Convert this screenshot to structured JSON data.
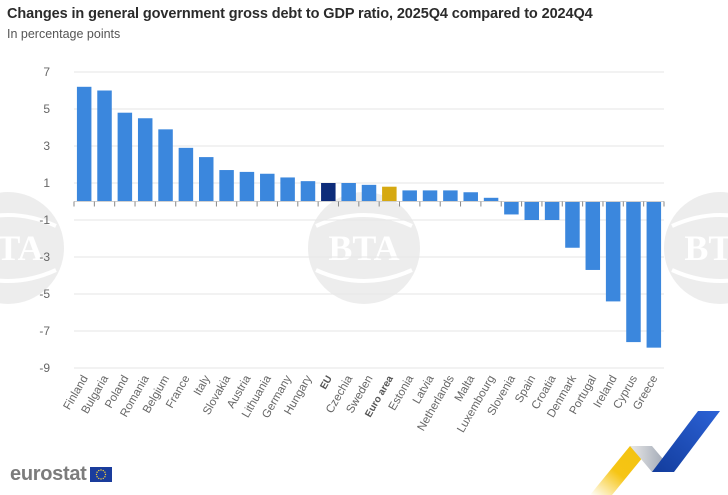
{
  "header": {
    "title": "Changes in general government gross debt to GDP ratio, 2025Q4 compared to 2024Q4",
    "subtitle": "In percentage points"
  },
  "branding": {
    "logo_text": "eurostat",
    "flag_icon": "eu-flag-icon",
    "watermark": "BTA"
  },
  "colors": {
    "country_bar": "#3b87dd",
    "eu_bar": "#0d2c7a",
    "euro_area_bar": "#d6a911",
    "gridline": "#e6e6e6",
    "axis_text": "#666666"
  },
  "chart_data": {
    "type": "bar",
    "title": "Changes in general government gross debt to GDP ratio, 2025Q4 compared to 2024Q4",
    "subtitle": "In percentage points",
    "xlabel": "",
    "ylabel": "",
    "ylim": [
      -9,
      7
    ],
    "yticks": [
      7,
      5,
      3,
      1,
      -1,
      -3,
      -5,
      -7,
      -9
    ],
    "ytick_labels": [
      "7",
      "5",
      "3",
      "1",
      "-1",
      "-3",
      "-5",
      "-7",
      "-9"
    ],
    "grid": true,
    "legend": "none",
    "categories": [
      "Finland",
      "Bulgaria",
      "Poland",
      "Romania",
      "Belgium",
      "France",
      "Italy",
      "Slovakia",
      "Austria",
      "Lithuania",
      "Germany",
      "Hungary",
      "EU",
      "Czechia",
      "Sweden",
      "Euro area",
      "Estonia",
      "Latvia",
      "Netherlands",
      "Malta",
      "Luxembourg",
      "Slovenia",
      "Spain",
      "Croatia",
      "Denmark",
      "Portugal",
      "Ireland",
      "Cyprus",
      "Greece"
    ],
    "values": [
      6.2,
      6.0,
      4.8,
      4.5,
      3.9,
      2.9,
      2.4,
      1.7,
      1.6,
      1.5,
      1.3,
      1.1,
      1.0,
      1.0,
      0.9,
      0.8,
      0.6,
      0.6,
      0.6,
      0.5,
      0.2,
      -0.7,
      -1.0,
      -1.0,
      -2.5,
      -3.7,
      -5.4,
      -7.6,
      -7.9
    ],
    "highlight": {
      "EU": "eu",
      "Euro area": "euro_area"
    },
    "bold_labels": [
      "EU",
      "Euro area"
    ]
  }
}
